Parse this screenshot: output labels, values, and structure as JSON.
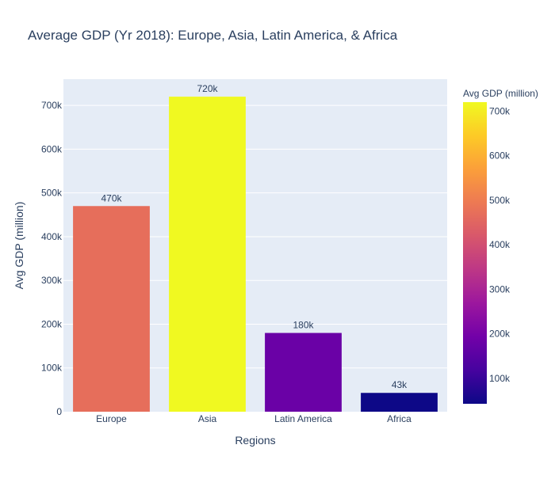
{
  "chart_data": {
    "type": "bar",
    "title": "Average GDP (Yr 2018): Europe, Asia, Latin America, & Africa",
    "xlabel": "Regions",
    "ylabel": "Avg GDP (million)",
    "categories": [
      "Europe",
      "Asia",
      "Latin America",
      "Africa"
    ],
    "values": [
      470000,
      720000,
      180000,
      43000
    ],
    "data_labels": [
      "470k",
      "720k",
      "180k",
      "43k"
    ],
    "ylim": [
      0,
      760000
    ],
    "yticks": [
      0,
      100000,
      200000,
      300000,
      400000,
      500000,
      600000,
      700000
    ],
    "ytick_labels": [
      "0",
      "100k",
      "200k",
      "300k",
      "400k",
      "500k",
      "600k",
      "700k"
    ],
    "grid": true,
    "plot_background": "#e5ecf6",
    "colorbar": {
      "title": "Avg GDP (million)",
      "range": [
        43000,
        720000
      ],
      "ticks": [
        100000,
        200000,
        300000,
        400000,
        500000,
        600000,
        700000
      ],
      "tick_labels": [
        "100k",
        "200k",
        "300k",
        "400k",
        "500k",
        "600k",
        "700k"
      ],
      "colorscale": [
        "#0d0887",
        "#46039f",
        "#7201a8",
        "#9c179e",
        "#bd3786",
        "#d8576b",
        "#ed7953",
        "#fb9f3a",
        "#fdca26",
        "#f0f921"
      ]
    }
  }
}
